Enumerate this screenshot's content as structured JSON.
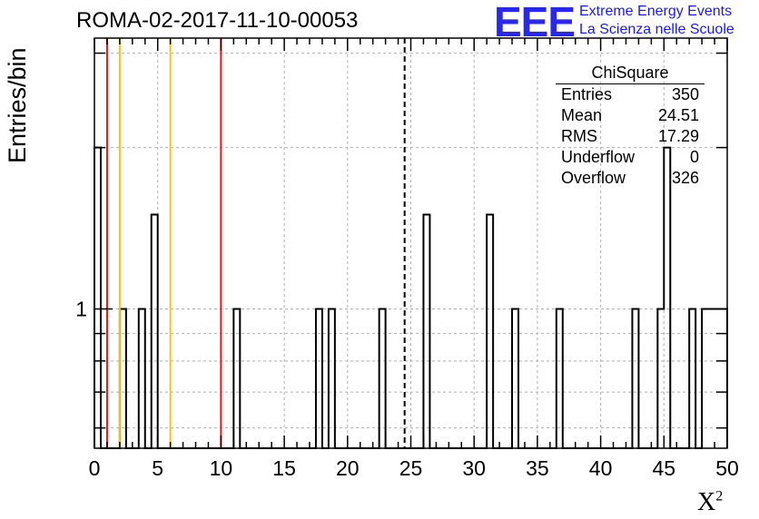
{
  "title": "ROMA-02-2017-11-10-00053",
  "logo": {
    "mark": "EEE",
    "line1": "Extreme Energy Events",
    "line2": "La Scienza nelle Scuole",
    "color": "#2828f0"
  },
  "stats": {
    "name": "ChiSquare",
    "rows": [
      {
        "label": "Entries",
        "value": "350"
      },
      {
        "label": "Mean",
        "value": "24.51"
      },
      {
        "label": "RMS",
        "value": "17.29"
      },
      {
        "label": "Underflow",
        "value": "0"
      },
      {
        "label": "Overflow",
        "value": "326"
      }
    ]
  },
  "chart_data": {
    "type": "bar",
    "histogram": true,
    "title": "ROMA-02-2017-11-10-00053",
    "xlabel": "X",
    "xlabel_superscript": "2",
    "ylabel": "Entries/bin",
    "xlim": [
      0,
      50
    ],
    "ylim": [
      0.55,
      3.2
    ],
    "yscale": "log",
    "bin_width": 0.5,
    "x_ticks": [
      0,
      5,
      10,
      15,
      20,
      25,
      30,
      35,
      40,
      45,
      50
    ],
    "y_ticks": [
      1
    ],
    "grid": true,
    "bins": [
      {
        "x": 0.0,
        "y": 2
      },
      {
        "x": 2.0,
        "y": 1
      },
      {
        "x": 3.5,
        "y": 1
      },
      {
        "x": 4.5,
        "y": 1.5
      },
      {
        "x": 11.0,
        "y": 1
      },
      {
        "x": 17.5,
        "y": 1
      },
      {
        "x": 18.5,
        "y": 1
      },
      {
        "x": 22.5,
        "y": 1
      },
      {
        "x": 26.0,
        "y": 1.5
      },
      {
        "x": 31.0,
        "y": 1.5
      },
      {
        "x": 33.0,
        "y": 1
      },
      {
        "x": 36.5,
        "y": 1
      },
      {
        "x": 42.5,
        "y": 1
      },
      {
        "x": 44.5,
        "y": 1
      },
      {
        "x": 45.0,
        "y": 2
      },
      {
        "x": 47.0,
        "y": 1
      },
      {
        "x": 48.0,
        "y": 1
      },
      {
        "x": 48.5,
        "y": 1
      },
      {
        "x": 49.0,
        "y": 1
      },
      {
        "x": 49.5,
        "y": 1
      }
    ],
    "vertical_lines": [
      {
        "x": 1,
        "color": "#e01818",
        "style": "solid"
      },
      {
        "x": 2,
        "color": "#f5c414",
        "style": "solid"
      },
      {
        "x": 6,
        "color": "#f5c414",
        "style": "solid"
      },
      {
        "x": 10,
        "color": "#e01818",
        "style": "solid"
      },
      {
        "x": 24.51,
        "color": "#000000",
        "style": "dashed"
      }
    ]
  }
}
